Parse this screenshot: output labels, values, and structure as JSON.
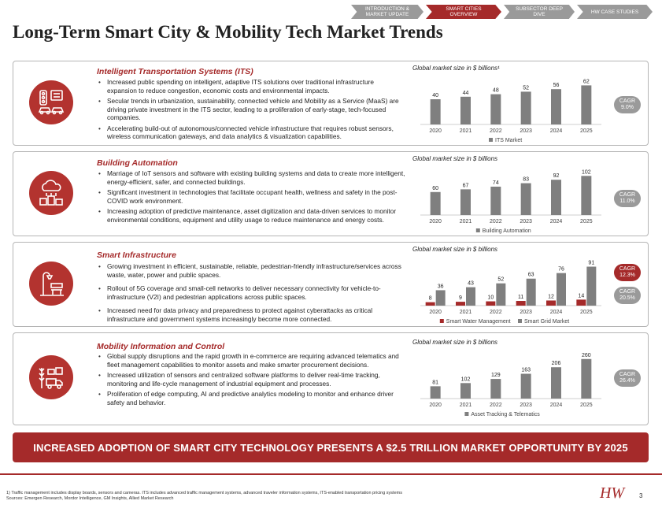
{
  "nav": {
    "tabs": [
      "INTRODUCTION & MARKET UPDATE",
      "SMART CITIES OVERVIEW",
      "SUBSECTOR DEEP DIVE",
      "HW CASE STUDIES"
    ],
    "active_index": 1
  },
  "page_title": "Long-Term Smart City & Mobility Tech Market Trends",
  "sections": [
    {
      "title": "Intelligent Transportation Systems (ITS)",
      "icon": "traffic-light-cars-icon",
      "bullets": [
        "Increased public spending on intelligent, adaptive ITS solutions over traditional infrastructure expansion to reduce congestion, economic costs and environmental impacts.",
        "Secular trends in urbanization, sustainability, connected vehicle and Mobility as a Service (MaaS) are driving private investment in the ITS sector, leading to a proliferation of early-stage, tech-focused companies.",
        "Accelerating build-out of autonomous/connected vehicle infrastructure that requires robust sensors, wireless communication gateways, and data analytics & visualization capabilities."
      ],
      "cagr": [
        "CAGR",
        "9.0%"
      ]
    },
    {
      "title": "Building Automation",
      "icon": "cloud-buildings-icon",
      "bullets": [
        "Marriage of IoT sensors and software with existing building systems and data to create more intelligent, energy-efficient, safer, and connected buildings.",
        "Significant investment in technologies that facilitate occupant health, wellness and safety in the post-COVID work environment.",
        "Increasing adoption of predictive maintenance, asset digitization and data-driven services to monitor environmental conditions, equipment and utility usage to reduce maintenance and energy costs."
      ],
      "cagr": [
        "CAGR",
        "11.0%"
      ]
    },
    {
      "title": "Smart Infrastructure",
      "icon": "street-lamp-bench-icon",
      "bullets": [
        "Growing investment in efficient, sustainable, reliable, pedestrian-friendly infrastructure/services across waste, water, power and public spaces.",
        "Rollout of 5G coverage and small-cell networks to deliver necessary connectivity for vehicle-to-infrastructure (V2I) and pedestrian applications across public spaces.",
        "Increased need for data privacy and preparedness to protect against cyberattacks as critical infrastructure and government systems increasingly become more connected."
      ],
      "cagr": [
        "CAGR",
        "12.3%"
      ],
      "cagr2": [
        "CAGR",
        "20.5%"
      ]
    },
    {
      "title": "Mobility Information and Control",
      "icon": "logistics-truck-icon",
      "bullets": [
        "Global supply disruptions and the rapid growth in e-commerce are requiring advanced telematics and fleet management capabilities to monitor assets and make smarter procurement decisions.",
        "Increased utilization of sensors and centralized software platforms to deliver real-time tracking, monitoring and life-cycle management of industrial equipment and processes.",
        "Proliferation of edge computing, AI and predictive analytics modeling to monitor and enhance driver safety and behavior."
      ],
      "cagr": [
        "CAGR",
        "26.4%"
      ]
    }
  ],
  "chart_data": [
    {
      "type": "bar",
      "title": "Global market size in $ billions¹",
      "categories": [
        "2020",
        "2021",
        "2022",
        "2023",
        "2024",
        "2025"
      ],
      "series": [
        {
          "name": "ITS Market",
          "values": [
            40,
            44,
            48,
            52,
            56,
            62
          ],
          "color": "#7f7f7f"
        }
      ],
      "ylim": [
        0,
        70
      ]
    },
    {
      "type": "bar",
      "title": "Global market size in $ billions",
      "categories": [
        "2020",
        "2021",
        "2022",
        "2023",
        "2024",
        "2025"
      ],
      "series": [
        {
          "name": "Building Automation",
          "values": [
            60,
            67,
            74,
            83,
            92,
            102
          ],
          "color": "#7f7f7f"
        }
      ],
      "ylim": [
        0,
        115
      ]
    },
    {
      "type": "bar",
      "title": "Global market size in $ billions",
      "categories": [
        "2020",
        "2021",
        "2022",
        "2023",
        "2024",
        "2025"
      ],
      "series": [
        {
          "name": "Smart Water Management",
          "values": [
            8,
            9,
            10,
            11,
            12,
            14
          ],
          "color": "#a52a2a"
        },
        {
          "name": "Smart Grid Market",
          "values": [
            36,
            43,
            52,
            63,
            76,
            91
          ],
          "color": "#7f7f7f"
        }
      ],
      "ylim": [
        0,
        103
      ]
    },
    {
      "type": "bar",
      "title": "Global market size in $ billions",
      "categories": [
        "2020",
        "2021",
        "2022",
        "2023",
        "2024",
        "2025"
      ],
      "series": [
        {
          "name": "Asset Tracking & Telematics",
          "values": [
            81,
            102,
            129,
            163,
            206,
            260
          ],
          "color": "#7f7f7f"
        }
      ],
      "ylim": [
        0,
        290
      ]
    }
  ],
  "banner": "INCREASED ADOPTION OF SMART CITY TECHNOLOGY PRESENTS A $2.5 TRILLION MARKET OPPORTUNITY BY 2025",
  "footnotes": [
    "1) Traffic management includes display boards, sensors and cameras. ITS includes advanced traffic management systems, advanced traveler information systems, ITS-enabled transportation pricing systems",
    "Sources: Emergen Research, Mordor Intelligence, GM Insights, Allied Market Research"
  ],
  "logo_text": "HW",
  "page_number": "3"
}
